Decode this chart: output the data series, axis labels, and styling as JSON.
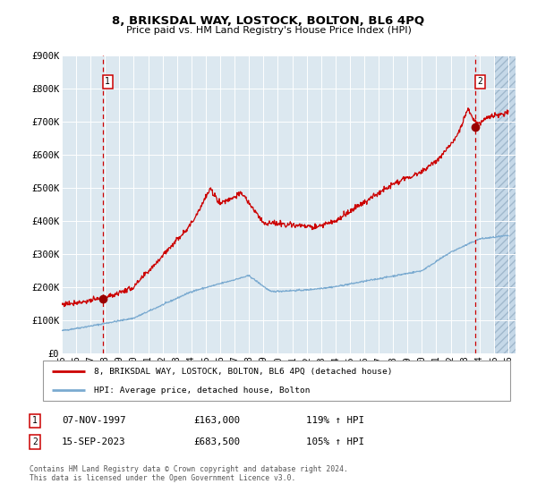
{
  "title": "8, BRIKSDAL WAY, LOSTOCK, BOLTON, BL6 4PQ",
  "subtitle": "Price paid vs. HM Land Registry's House Price Index (HPI)",
  "background_color": "#ffffff",
  "plot_bg_color": "#dce8f0",
  "grid_color": "#ffffff",
  "red_line_color": "#cc0000",
  "blue_line_color": "#7aaad0",
  "sale1_date": "07-NOV-1997",
  "sale1_price": 163000,
  "sale1_price_str": "£163,000",
  "sale1_hpi": "119% ↑ HPI",
  "sale1_year": 1997.85,
  "sale1_y": 163000,
  "sale2_date": "15-SEP-2023",
  "sale2_price": 683500,
  "sale2_price_str": "£683,500",
  "sale2_hpi": "105% ↑ HPI",
  "sale2_year": 2023.71,
  "sale2_y": 683500,
  "legend_line1": "8, BRIKSDAL WAY, LOSTOCK, BOLTON, BL6 4PQ (detached house)",
  "legend_line2": "HPI: Average price, detached house, Bolton",
  "footer": "Contains HM Land Registry data © Crown copyright and database right 2024.\nThis data is licensed under the Open Government Licence v3.0.",
  "ylim": [
    0,
    900000
  ],
  "xlim_start": 1995.0,
  "xlim_end": 2026.5,
  "yticks": [
    0,
    100000,
    200000,
    300000,
    400000,
    500000,
    600000,
    700000,
    800000,
    900000
  ],
  "ytick_labels": [
    "£0",
    "£100K",
    "£200K",
    "£300K",
    "£400K",
    "£500K",
    "£600K",
    "£700K",
    "£800K",
    "£900K"
  ],
  "xticks": [
    1995,
    1996,
    1997,
    1998,
    1999,
    2000,
    2001,
    2002,
    2003,
    2004,
    2005,
    2006,
    2007,
    2008,
    2009,
    2010,
    2011,
    2012,
    2013,
    2014,
    2015,
    2016,
    2017,
    2018,
    2019,
    2020,
    2021,
    2022,
    2023,
    2024,
    2025,
    2026
  ],
  "hatch_start": 2025.0,
  "figsize": [
    6.0,
    5.6
  ],
  "dpi": 100
}
